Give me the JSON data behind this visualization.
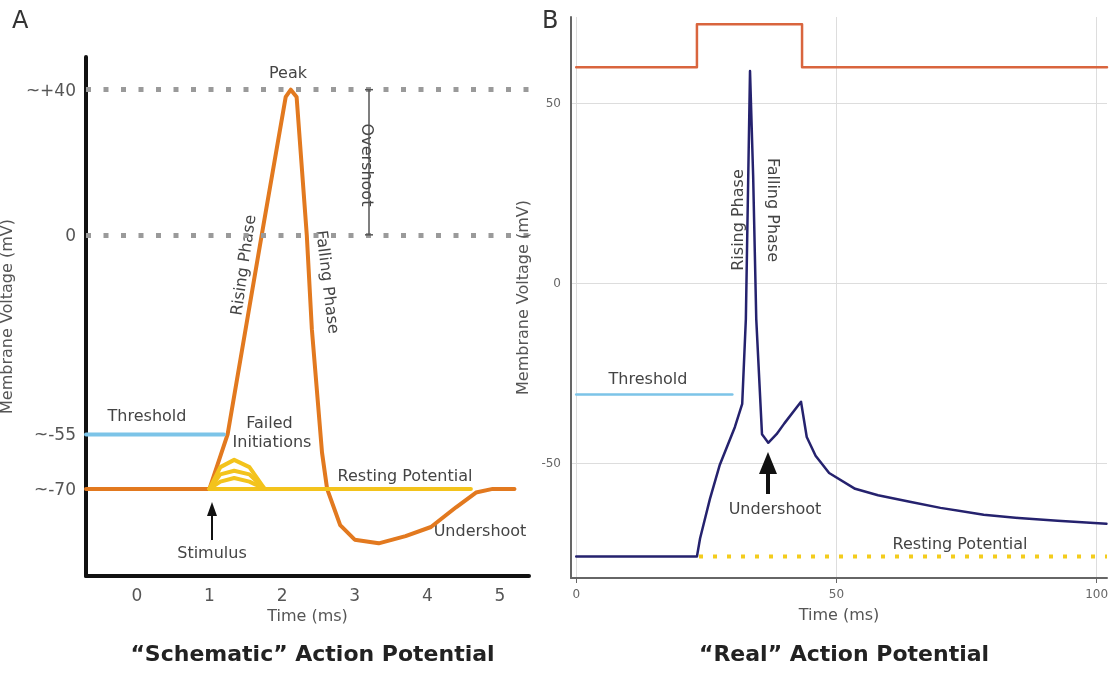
{
  "chart_data": [
    {
      "type": "line",
      "title": "“Schematic” Action Potential",
      "xlabel": "Time (ms)",
      "ylabel": "Membrane Voltage (mV)",
      "xlim": [
        -0.7,
        5.4
      ],
      "xticks": [
        0,
        1,
        2,
        3,
        4,
        5
      ],
      "ylim": [
        -94,
        49
      ],
      "yticks": [
        {
          "value": 40,
          "label": "~+40"
        },
        0,
        {
          "value": -55,
          "label": "~-55"
        },
        {
          "value": -70,
          "label": "~-70"
        }
      ],
      "ref_lines": [
        {
          "axis": "y",
          "value": 40,
          "color": "#9a9a9a",
          "line_style": "dotted"
        },
        {
          "axis": "y",
          "value": 0,
          "color": "#9a9a9a",
          "line_style": "dotted"
        }
      ],
      "series": [
        {
          "color": "#e2791f",
          "x": [
            -0.7,
            1.0,
            1.25,
            1.72,
            2.05,
            2.12,
            2.2,
            2.34,
            2.41,
            2.55,
            2.62,
            2.8,
            3.0,
            3.33,
            3.7,
            4.05,
            4.4,
            4.67,
            4.9,
            5.2
          ],
          "values": [
            -70,
            -70,
            -55,
            0,
            38,
            40,
            38,
            0,
            -26,
            -60,
            -70,
            -80,
            -84,
            -85,
            -83,
            -80.5,
            -75,
            -71,
            -70,
            -70
          ]
        },
        {
          "color": "#f3c31c",
          "x": [
            1.0,
            4.6
          ],
          "values": [
            -70,
            -70
          ]
        },
        {
          "color": "#f3c31c",
          "x": [
            1.0,
            1.15,
            1.34,
            1.55,
            1.76
          ],
          "values": [
            -70,
            -64,
            -62,
            -64,
            -70
          ]
        },
        {
          "color": "#f3c31c",
          "x": [
            1.0,
            1.15,
            1.34,
            1.55,
            1.76
          ],
          "values": [
            -70,
            -66,
            -65,
            -66,
            -70
          ]
        },
        {
          "color": "#f3c31c",
          "x": [
            1.0,
            1.15,
            1.34,
            1.55,
            1.76
          ],
          "values": [
            -70,
            -68,
            -67,
            -68,
            -70
          ]
        },
        {
          "color": "#7cc4e8",
          "x": [
            -0.7,
            1.2
          ],
          "values": [
            -55,
            -55
          ]
        }
      ],
      "annotations": [
        "A",
        "Peak",
        "Rising Phase",
        "Falling Phase",
        "Overshoot",
        "Threshold",
        "Failed Initiations",
        "Resting Potential",
        "Undershoot",
        "Stimulus"
      ]
    },
    {
      "type": "line",
      "title": "“Real” Action Potential",
      "xlabel": "Time (ms)",
      "ylabel": "Membrane Voltage (mV)",
      "xlim": [
        -1,
        102
      ],
      "xticks": [
        0,
        50,
        100
      ],
      "ylim": [
        -82,
        74
      ],
      "yticks": [
        50,
        0,
        -50
      ],
      "grid": true,
      "series": [
        {
          "type": "step",
          "color": "#d9653e",
          "x": [
            0,
            23.2,
            43.4,
            102
          ],
          "values": [
            60,
            72,
            60,
            60
          ]
        },
        {
          "color": "#f3cc1c",
          "line_style": "dotted",
          "x": [
            23.6,
            102
          ],
          "values": [
            -76,
            -76
          ]
        },
        {
          "color": "#7cc4e8",
          "x": [
            0,
            30
          ],
          "values": [
            -31,
            -31
          ]
        },
        {
          "color": "#25226e",
          "x": [
            0,
            10,
            20,
            23.2,
            23.8,
            25.7,
            27.6,
            30.5,
            31.9,
            32.6,
            33.4,
            34.0,
            34.6,
            35.7,
            36.9,
            38.5,
            40,
            43.2,
            44.3,
            46,
            48.6,
            53.6,
            58,
            64.1,
            70,
            78.3,
            85,
            92.5,
            101.9
          ],
          "values": [
            -76,
            -76,
            -76,
            -76,
            -71,
            -60,
            -50.5,
            -40,
            -33.6,
            -10,
            59,
            30,
            -10,
            -42,
            -44.4,
            -42,
            -39,
            -33,
            -42.8,
            -48,
            -52.8,
            -57.2,
            -59,
            -60.8,
            -62.5,
            -64.4,
            -65.3,
            -66.1,
            -66.9
          ]
        }
      ],
      "annotations": [
        "B",
        "Rising Phase",
        "Falling Phase",
        "Threshold",
        "Undershoot",
        "Resting Potential"
      ]
    }
  ]
}
